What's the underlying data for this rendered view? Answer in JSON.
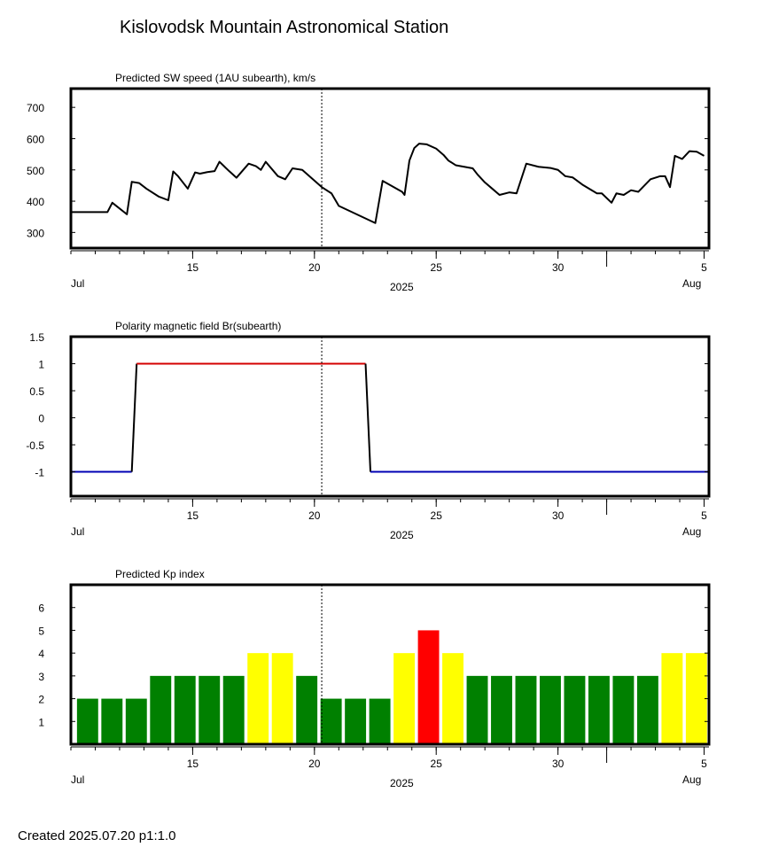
{
  "header": {
    "title": "Kislovodsk Mountain Astronomical Station"
  },
  "footer": {
    "created": "Created  2025.07.20    p1:1.0"
  },
  "x_axis": {
    "ticks": [
      "15",
      "20",
      "25",
      "30",
      "5"
    ],
    "month_left": "Jul",
    "year": "2025",
    "month_right": "Aug",
    "range_days": [
      10.0,
      36.2
    ],
    "current_date_marker": 20.3
  },
  "chart_data": [
    {
      "type": "line",
      "title": "Predicted SW speed (1AU subearth), km/s",
      "ylim": [
        250,
        760
      ],
      "yticks": [
        300,
        400,
        500,
        600,
        700
      ],
      "color": "#000000",
      "x": [
        10.0,
        11.5,
        11.7,
        12.3,
        12.5,
        12.8,
        13.1,
        13.6,
        14.0,
        14.2,
        14.4,
        14.8,
        15.1,
        15.3,
        15.6,
        15.9,
        16.1,
        16.5,
        16.8,
        17.3,
        17.6,
        17.8,
        18.0,
        18.5,
        18.8,
        19.1,
        19.5,
        20.3,
        20.7,
        21.0,
        22.5,
        22.8,
        23.6,
        23.7,
        23.9,
        24.1,
        24.3,
        24.6,
        25.0,
        25.3,
        25.5,
        25.8,
        26.5,
        26.7,
        27.0,
        27.3,
        27.6,
        28.0,
        28.3,
        28.7,
        29.2,
        29.7,
        30.0,
        30.3,
        30.6,
        31.0,
        31.6,
        31.8,
        32.2,
        32.4,
        32.7,
        33.0,
        33.3,
        33.8,
        34.2,
        34.4,
        34.6,
        34.8,
        35.1,
        35.4,
        35.7,
        36.0
      ],
      "y": [
        365,
        365,
        395,
        358,
        462,
        458,
        440,
        415,
        403,
        495,
        480,
        440,
        492,
        488,
        493,
        496,
        526,
        496,
        475,
        520,
        512,
        500,
        526,
        480,
        470,
        505,
        500,
        445,
        425,
        385,
        330,
        465,
        430,
        420,
        530,
        570,
        584,
        582,
        568,
        548,
        530,
        515,
        505,
        485,
        460,
        440,
        420,
        428,
        425,
        520,
        510,
        506,
        500,
        480,
        476,
        453,
        425,
        425,
        395,
        425,
        420,
        435,
        430,
        470,
        480,
        480,
        445,
        545,
        535,
        560,
        558,
        545
      ]
    },
    {
      "type": "line",
      "title": "Polarity magnetic field  Br(subearth)",
      "ylim": [
        -1.45,
        1.5
      ],
      "yticks": [
        1.5,
        1,
        0.5,
        0,
        -0.5,
        -1
      ],
      "ytick_labels": [
        "1.5",
        "1",
        "0.5",
        "0",
        "-0.5",
        "-1"
      ],
      "x": [
        10.0,
        12.5,
        12.7,
        22.1,
        22.3,
        36.2
      ],
      "y": [
        -1,
        -1,
        1,
        1,
        -1,
        -1
      ],
      "colors": {
        "positive": "#d40000",
        "negative": "#0000b4",
        "transition": "#000000"
      }
    },
    {
      "type": "bar",
      "title": "Predicted Kp index",
      "ylim": [
        0,
        7
      ],
      "yticks": [
        1,
        2,
        3,
        4,
        5,
        6
      ],
      "bar_width_days": 0.87,
      "bar_start": 10.25,
      "bar_step": 1.0,
      "values": [
        2,
        2,
        2,
        3,
        3,
        3,
        3,
        4,
        4,
        3,
        2,
        2,
        2,
        4,
        5,
        4,
        3,
        3,
        3,
        3,
        3,
        3,
        3,
        3,
        4,
        4
      ],
      "colors": {
        "low": "#008000",
        "medium": "#ffff00",
        "high": "#ff0000"
      }
    }
  ]
}
